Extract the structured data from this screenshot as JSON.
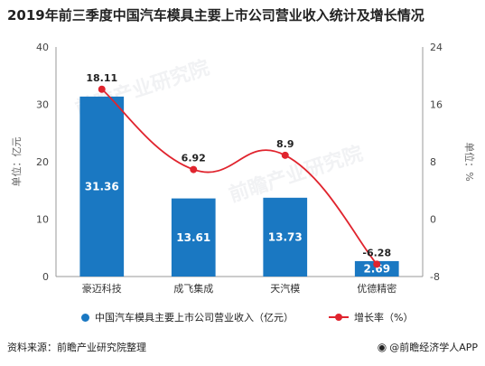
{
  "title": "2019年前三季度中国汽车模具主要上市公司营业收入统计及增长情况",
  "chart_data": {
    "type": "bar",
    "categories": [
      "豪迈科技",
      "成飞集成",
      "天汽模",
      "优德精密"
    ],
    "series": [
      {
        "name": "中国汽车模具主要上市公司营业收入（亿元）",
        "type": "bar",
        "axis": "left",
        "values": [
          31.36,
          13.61,
          13.73,
          2.69
        ]
      },
      {
        "name": "增长率（%）",
        "type": "line",
        "axis": "right",
        "values": [
          18.11,
          6.92,
          8.9,
          -6.28
        ]
      }
    ],
    "left_axis": {
      "label": "单位：亿元",
      "ylim": [
        0,
        40
      ],
      "ticks": [
        0,
        10,
        20,
        30,
        40
      ]
    },
    "right_axis": {
      "label": "单位：%",
      "ylim": [
        -8,
        24
      ],
      "ticks": [
        -8,
        0,
        8,
        16,
        24
      ]
    },
    "bar_labels": [
      "31.36",
      "13.61",
      "13.73",
      "2.69"
    ],
    "line_labels": [
      "18.11",
      "6.92",
      "8.9",
      "-6.28"
    ],
    "grid": false,
    "legend_position": "bottom"
  },
  "colors": {
    "bar": "#1a78c2",
    "line": "#e0242e"
  },
  "watermarks": [
    "前瞻产业研究院",
    "前瞻产业研究院"
  ],
  "legend": {
    "bar_label": "中国汽车模具主要上市公司营业收入（亿元）",
    "line_label": "增长率（%）"
  },
  "footer": {
    "source": "资料来源：前瞻产业研究院整理",
    "brand": "@前瞻经济学人APP",
    "brand_icon": "eye-icon"
  }
}
